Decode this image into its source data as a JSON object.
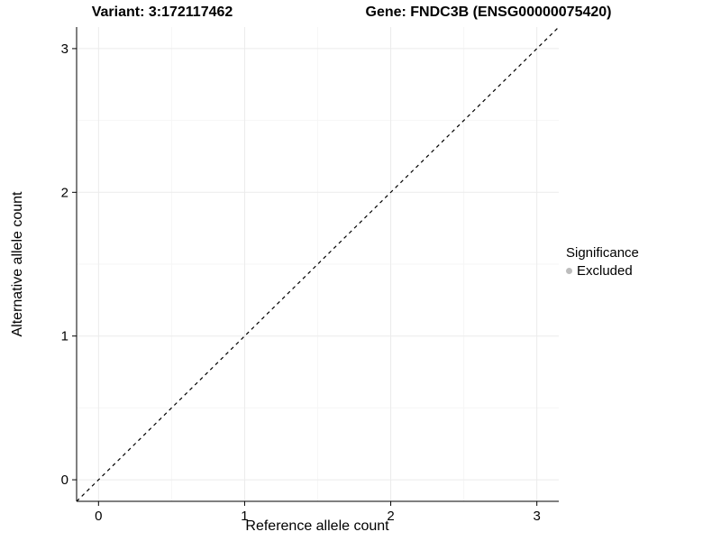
{
  "chart_data": {
    "type": "scatter",
    "titles": {
      "left": "Variant: 3:172117462",
      "right": "Gene: FNDC3B (ENSG00000075420)"
    },
    "xlabel": "Reference allele count",
    "ylabel": "Alternative allele count",
    "xlim": [
      -0.15,
      3.15
    ],
    "ylim": [
      -0.15,
      3.15
    ],
    "xticks": [
      0,
      1,
      2,
      3
    ],
    "yticks": [
      0,
      1,
      2,
      3
    ],
    "minor_ticks": [
      0.5,
      1.5,
      2.5
    ],
    "grid": "on",
    "points": [],
    "reference_line": {
      "type": "identity",
      "slope": 1,
      "intercept": 0,
      "style": "dashed",
      "color": "#000000"
    },
    "legend": {
      "title": "Significance",
      "position": "right",
      "entries": [
        {
          "label": "Excluded",
          "color": "#bdbdbd",
          "marker": "circle"
        }
      ]
    },
    "colors": {
      "grid_major": "#ebebeb",
      "grid_minor": "#f6f6f6",
      "axis": "#000000",
      "background": "#ffffff"
    }
  }
}
